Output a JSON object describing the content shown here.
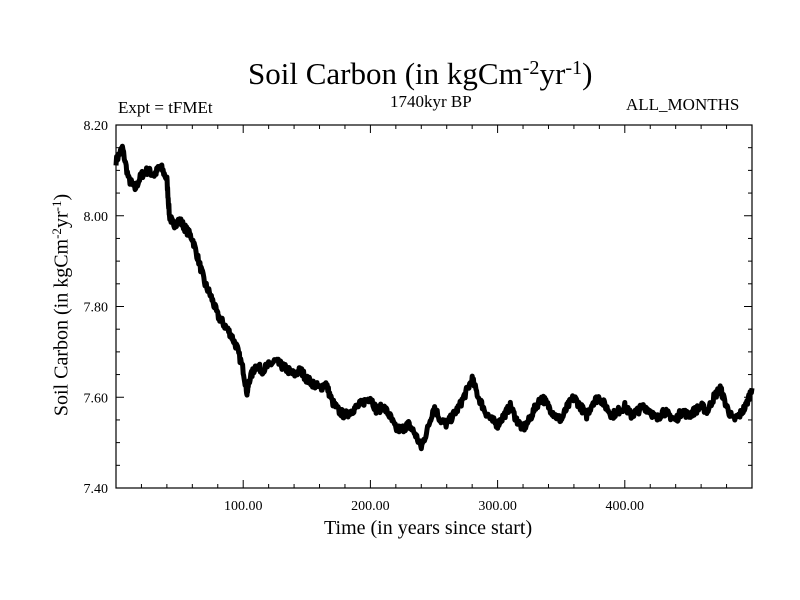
{
  "chart_data": {
    "type": "line",
    "title": "Soil Carbon (in kgCm",
    "title_exp1": "-2",
    "title_mid": "yr",
    "title_exp2": "-1",
    "title_end": ")",
    "subtitle_left": "Expt = tFMEt",
    "subtitle_center": "1740kyr BP",
    "subtitle_right": "ALL_MONTHS",
    "xlabel": "Time (in years since start)",
    "ylabel": "Soil Carbon (in kgCm",
    "ylabel_exp1": "-2",
    "ylabel_mid": "yr",
    "ylabel_exp2": "-1",
    "ylabel_end": ")",
    "xlim": [
      0,
      500
    ],
    "ylim": [
      7.4,
      8.2
    ],
    "xticks": [
      100,
      200,
      300,
      400
    ],
    "xtick_labels": [
      "100.00",
      "200.00",
      "300.00",
      "400.00"
    ],
    "yticks": [
      7.4,
      7.6,
      7.8,
      8.0,
      8.2
    ],
    "ytick_labels": [
      "7.40",
      "7.60",
      "7.80",
      "8.00",
      "8.20"
    ],
    "series": [
      {
        "name": "soil_carbon",
        "x": [
          0,
          5,
          10,
          15,
          20,
          25,
          30,
          35,
          40,
          42,
          45,
          50,
          55,
          60,
          65,
          70,
          75,
          80,
          85,
          90,
          95,
          100,
          103,
          105,
          110,
          115,
          120,
          125,
          130,
          135,
          140,
          145,
          150,
          155,
          160,
          165,
          170,
          175,
          180,
          185,
          190,
          195,
          200,
          205,
          210,
          215,
          220,
          225,
          230,
          235,
          240,
          245,
          250,
          255,
          260,
          265,
          270,
          275,
          280,
          285,
          290,
          295,
          300,
          305,
          310,
          315,
          320,
          325,
          330,
          335,
          340,
          345,
          350,
          355,
          360,
          365,
          370,
          375,
          380,
          385,
          390,
          395,
          400,
          405,
          410,
          415,
          420,
          425,
          430,
          435,
          440,
          445,
          450,
          455,
          460,
          465,
          470,
          475,
          480,
          485,
          490,
          495,
          500
        ],
        "y": [
          8.12,
          8.15,
          8.08,
          8.06,
          8.09,
          8.1,
          8.09,
          8.11,
          8.08,
          8.0,
          7.98,
          7.99,
          7.97,
          7.95,
          7.9,
          7.85,
          7.82,
          7.78,
          7.76,
          7.74,
          7.71,
          7.66,
          7.61,
          7.64,
          7.67,
          7.66,
          7.67,
          7.68,
          7.67,
          7.66,
          7.65,
          7.66,
          7.64,
          7.63,
          7.62,
          7.63,
          7.59,
          7.57,
          7.56,
          7.57,
          7.58,
          7.59,
          7.6,
          7.57,
          7.58,
          7.56,
          7.53,
          7.53,
          7.54,
          7.52,
          7.49,
          7.53,
          7.58,
          7.55,
          7.54,
          7.56,
          7.58,
          7.61,
          7.64,
          7.6,
          7.57,
          7.55,
          7.54,
          7.56,
          7.58,
          7.55,
          7.53,
          7.55,
          7.58,
          7.6,
          7.58,
          7.56,
          7.55,
          7.58,
          7.6,
          7.58,
          7.56,
          7.59,
          7.6,
          7.58,
          7.56,
          7.57,
          7.58,
          7.56,
          7.57,
          7.58,
          7.57,
          7.55,
          7.57,
          7.56,
          7.55,
          7.57,
          7.56,
          7.57,
          7.58,
          7.57,
          7.6,
          7.62,
          7.58,
          7.55,
          7.56,
          7.58,
          7.62
        ]
      }
    ]
  }
}
